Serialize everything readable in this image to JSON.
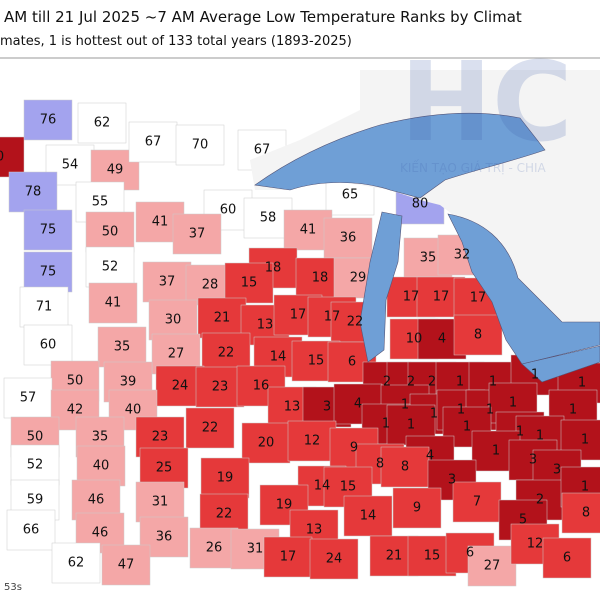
{
  "header": {
    "title": "AM till 21 Jul 2025 ~7 AM Average Low Temperature Ranks by Climat",
    "subtitle": "mates, 1 is hottest out of 133 total years (1893-2025)"
  },
  "watermark": {
    "logo": "HC",
    "tagline": "KIẾN TẠO GIÁ TRỊ - CHIA"
  },
  "ranks": [
    76,
    62,
    0,
    54,
    49,
    78,
    55,
    67,
    70,
    67,
    65,
    80,
    60,
    58,
    41,
    37,
    41,
    36,
    75,
    50,
    75,
    52,
    35,
    32,
    18,
    18,
    29,
    37,
    28,
    15,
    71,
    41,
    17,
    17,
    17,
    30,
    21,
    13,
    17,
    17,
    22,
    10,
    4,
    8,
    60,
    35,
    27,
    22,
    14,
    15,
    6,
    50,
    39,
    24,
    23,
    16,
    2,
    2,
    2,
    1,
    1,
    1,
    1,
    57,
    42,
    40,
    13,
    3,
    4,
    1,
    1,
    1,
    1,
    1,
    1,
    22,
    1,
    1,
    1,
    1,
    1,
    1,
    50,
    35,
    23,
    20,
    12,
    9,
    4,
    1,
    3,
    52,
    40,
    25,
    19,
    8,
    8,
    3,
    3,
    14,
    15,
    59,
    46,
    31,
    19,
    9,
    7,
    2,
    1,
    22,
    14,
    8,
    66,
    46,
    36,
    13,
    5,
    62,
    47,
    26,
    31,
    17,
    24,
    21,
    15,
    6,
    27,
    12,
    6
  ],
  "footer": "53s"
}
